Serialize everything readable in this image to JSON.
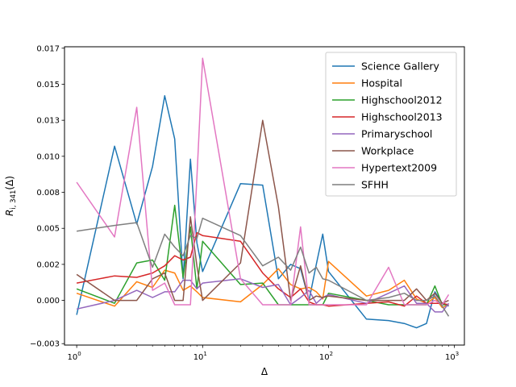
{
  "chart_data": {
    "type": "line",
    "title": "",
    "xlabel": "Δ",
    "ylabel_main": "R",
    "ylabel_sub": "i, 341",
    "ylabel_tail": "(Δ)",
    "xscale": "log",
    "xlim": [
      0.8,
      1200
    ],
    "ylim": [
      -0.0031,
      0.0176
    ],
    "x_ticks": [
      {
        "value": 1,
        "base": "10",
        "exp": "0"
      },
      {
        "value": 10,
        "base": "10",
        "exp": "1"
      },
      {
        "value": 100,
        "base": "10",
        "exp": "2"
      },
      {
        "value": 1000,
        "base": "10",
        "exp": "3"
      }
    ],
    "y_ticks": [
      {
        "value": -0.003,
        "label": "−0.003"
      },
      {
        "value": 0.0,
        "label": "0.000"
      },
      {
        "value": 0.0025,
        "label": "0.002"
      },
      {
        "value": 0.005,
        "label": "0.005"
      },
      {
        "value": 0.0075,
        "label": "0.008"
      },
      {
        "value": 0.01,
        "label": "0.010"
      },
      {
        "value": 0.0125,
        "label": "0.013"
      },
      {
        "value": 0.015,
        "label": "0.015"
      },
      {
        "value": 0.0175,
        "label": "0.017"
      }
    ],
    "legend_position": "top-right",
    "series": [
      {
        "name": "Science Gallery",
        "color": "#1f77b4",
        "x": [
          1,
          2,
          3,
          4,
          5,
          6,
          7,
          8,
          9,
          10,
          20,
          30,
          40,
          50,
          60,
          70,
          80,
          90,
          100,
          200,
          300,
          400,
          500,
          600,
          700,
          800,
          900
        ],
        "y": [
          -0.001,
          0.0107,
          0.0053,
          0.0093,
          0.0142,
          0.0112,
          0.0015,
          0.0098,
          0.004,
          0.002,
          0.0081,
          0.008,
          0.0015,
          0.0025,
          0.0022,
          0.0,
          0.0025,
          0.0046,
          0.002,
          -0.0013,
          -0.0014,
          -0.0016,
          -0.0019,
          -0.0016,
          0.0006,
          -0.0002,
          -0.0004
        ]
      },
      {
        "name": "Hospital",
        "color": "#ff7f0e",
        "x": [
          1,
          2,
          3,
          4,
          5,
          6,
          7,
          8,
          9,
          10,
          20,
          30,
          40,
          50,
          60,
          70,
          80,
          90,
          100,
          200,
          300,
          400,
          500,
          600,
          700,
          800,
          900
        ],
        "y": [
          0.0005,
          -0.0004,
          0.0013,
          0.0009,
          0.0021,
          0.0019,
          0.0007,
          0.001,
          0.0006,
          0.0002,
          -0.0001,
          0.0011,
          0.0022,
          0.0011,
          0.0008,
          0.0009,
          0.0006,
          0.0001,
          0.0027,
          0.0003,
          0.0007,
          0.0014,
          0.0001,
          -0.0002,
          0.0002,
          -0.0005,
          -0.0003
        ]
      },
      {
        "name": "Highschool2012",
        "color": "#2ca02c",
        "x": [
          1,
          2,
          3,
          4,
          5,
          6,
          7,
          8,
          9,
          10,
          20,
          30,
          40,
          50,
          60,
          70,
          80,
          90,
          100,
          200,
          300,
          400,
          500,
          600,
          700,
          800,
          900
        ],
        "y": [
          0.0008,
          -0.0002,
          0.0026,
          0.0028,
          0.0014,
          0.0066,
          0.0016,
          0.0051,
          0.0008,
          0.0041,
          0.0011,
          0.0012,
          -0.0003,
          -0.0003,
          -0.0003,
          -0.0003,
          -0.0003,
          -0.0003,
          0.0005,
          0.0,
          -0.0003,
          -0.0003,
          -0.0003,
          -0.0003,
          0.001,
          -0.0003,
          -0.0003
        ]
      },
      {
        "name": "Highschool2013",
        "color": "#d62728",
        "x": [
          1,
          2,
          3,
          4,
          5,
          6,
          7,
          8,
          9,
          10,
          20,
          30,
          40,
          50,
          60,
          70,
          80,
          90,
          100,
          200,
          300,
          400,
          500,
          600,
          700,
          800,
          900
        ],
        "y": [
          0.0012,
          0.0017,
          0.0016,
          0.0019,
          0.0024,
          0.0031,
          0.0028,
          0.003,
          0.0047,
          0.0045,
          0.0041,
          0.0019,
          0.0008,
          0.0002,
          0.0008,
          -0.0001,
          -0.0003,
          -0.0003,
          -0.0004,
          -0.0002,
          -0.0001,
          -0.0004,
          0.0003,
          -0.0002,
          -0.0002,
          -0.0002,
          -0.0003
        ]
      },
      {
        "name": "Primaryschool",
        "color": "#9467bd",
        "x": [
          1,
          2,
          3,
          4,
          5,
          6,
          7,
          8,
          9,
          10,
          20,
          30,
          40,
          50,
          60,
          70,
          80,
          90,
          100,
          200,
          300,
          400,
          500,
          600,
          700,
          800,
          900
        ],
        "y": [
          -0.0006,
          0.0,
          0.0007,
          0.0002,
          0.0006,
          0.0006,
          0.0014,
          0.0014,
          0.0008,
          0.0012,
          0.0015,
          0.0009,
          0.0011,
          -0.0003,
          0.0002,
          0.0007,
          -0.0002,
          0.0002,
          0.0004,
          -0.0002,
          0.0005,
          0.001,
          -0.0002,
          -0.0002,
          -0.0008,
          -0.0008,
          -0.0002
        ]
      },
      {
        "name": "Workplace",
        "color": "#8c564b",
        "x": [
          1,
          2,
          3,
          4,
          5,
          6,
          7,
          8,
          9,
          10,
          20,
          30,
          40,
          50,
          60,
          70,
          80,
          90,
          100,
          200,
          300,
          400,
          500,
          600,
          700,
          800,
          900
        ],
        "y": [
          0.0018,
          0.0,
          0.0,
          0.0015,
          0.0019,
          0.0,
          0.0,
          0.0058,
          0.0024,
          0.0,
          0.0026,
          0.0125,
          0.0065,
          0.0,
          0.0024,
          0.0,
          0.0003,
          0.0002,
          0.0003,
          0.0,
          0.0,
          0.0,
          0.0008,
          0.0,
          0.0005,
          -0.0002,
          0.0
        ]
      },
      {
        "name": "Hypertext2009",
        "color": "#e377c2",
        "x": [
          1,
          2,
          3,
          4,
          5,
          6,
          7,
          8,
          9,
          10,
          20,
          30,
          40,
          50,
          60,
          70,
          80,
          90,
          100,
          200,
          300,
          400,
          500,
          600,
          700,
          800,
          900
        ],
        "y": [
          0.0082,
          0.0044,
          0.0134,
          0.0007,
          0.0012,
          -0.0003,
          -0.0003,
          -0.0003,
          0.0085,
          0.0168,
          0.0015,
          -0.0003,
          -0.0003,
          -0.0003,
          0.0051,
          -0.0003,
          -0.0003,
          -0.0003,
          -0.0003,
          -0.0003,
          0.0023,
          -0.0003,
          -0.0003,
          -0.0003,
          0.0,
          -0.0003,
          0.0004
        ]
      },
      {
        "name": "SFHH",
        "color": "#7f7f7f",
        "x": [
          1,
          2,
          3,
          4,
          5,
          6,
          7,
          8,
          9,
          10,
          20,
          30,
          40,
          50,
          60,
          70,
          80,
          90,
          100,
          200,
          300,
          400,
          500,
          600,
          700,
          800,
          900
        ],
        "y": [
          0.0048,
          0.0052,
          0.0054,
          0.0023,
          0.0046,
          0.0037,
          0.0031,
          0.0045,
          0.0043,
          0.0057,
          0.0045,
          0.0024,
          0.003,
          0.0021,
          0.0037,
          0.0019,
          0.0023,
          0.0015,
          0.0014,
          0.0,
          0.0002,
          0.0005,
          0.0,
          0.0,
          0.0003,
          -0.0004,
          -0.0011
        ]
      }
    ]
  }
}
